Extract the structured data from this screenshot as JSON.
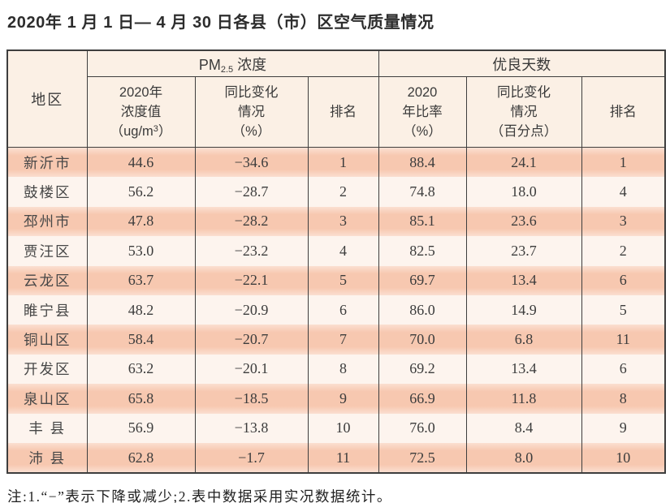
{
  "title": "2020年 1 月 1 日— 4 月 30 日各县（市）区空气质量情况",
  "table": {
    "header": {
      "region": "地区",
      "pm_group": {
        "prefix": "PM",
        "sub": "2.5",
        "suffix": "浓度"
      },
      "good_group": "优良天数",
      "pm_value": {
        "l1": "2020年",
        "l2": "浓度值",
        "l3_pre": "（ug/m",
        "l3_sup": "3",
        "l3_post": "）"
      },
      "pm_change": {
        "l1": "同比变化",
        "l2": "情况",
        "l3": "（%）"
      },
      "pm_rank": "排名",
      "good_rate": {
        "l1": "2020",
        "l2": "年比率",
        "l3": "（%）"
      },
      "good_change": {
        "l1": "同比变化",
        "l2": "情况",
        "l3": "（百分点）"
      },
      "good_rank": "排名"
    },
    "rows": [
      {
        "region": "新沂市",
        "pm_value": "44.6",
        "pm_change": "−34.6",
        "pm_rank": "1",
        "good_rate": "88.4",
        "good_change": "24.1",
        "good_rank": "1"
      },
      {
        "region": "鼓楼区",
        "pm_value": "56.2",
        "pm_change": "−28.7",
        "pm_rank": "2",
        "good_rate": "74.8",
        "good_change": "18.0",
        "good_rank": "4"
      },
      {
        "region": "邳州市",
        "pm_value": "47.8",
        "pm_change": "−28.2",
        "pm_rank": "3",
        "good_rate": "85.1",
        "good_change": "23.6",
        "good_rank": "3"
      },
      {
        "region": "贾汪区",
        "pm_value": "53.0",
        "pm_change": "−23.2",
        "pm_rank": "4",
        "good_rate": "82.5",
        "good_change": "23.7",
        "good_rank": "2"
      },
      {
        "region": "云龙区",
        "pm_value": "63.7",
        "pm_change": "−22.1",
        "pm_rank": "5",
        "good_rate": "69.7",
        "good_change": "13.4",
        "good_rank": "6"
      },
      {
        "region": "睢宁县",
        "pm_value": "48.2",
        "pm_change": "−20.9",
        "pm_rank": "6",
        "good_rate": "86.0",
        "good_change": "14.9",
        "good_rank": "5"
      },
      {
        "region": "铜山区",
        "pm_value": "58.4",
        "pm_change": "−20.7",
        "pm_rank": "7",
        "good_rate": "70.0",
        "good_change": "6.8",
        "good_rank": "11"
      },
      {
        "region": "开发区",
        "pm_value": "63.2",
        "pm_change": "−20.1",
        "pm_rank": "8",
        "good_rate": "69.2",
        "good_change": "13.4",
        "good_rank": "6"
      },
      {
        "region": "泉山区",
        "pm_value": "65.8",
        "pm_change": "−18.5",
        "pm_rank": "9",
        "good_rate": "66.9",
        "good_change": "11.8",
        "good_rank": "8"
      },
      {
        "region": "丰 县",
        "pm_value": "56.9",
        "pm_change": "−13.8",
        "pm_rank": "10",
        "good_rate": "76.0",
        "good_change": "8.4",
        "good_rank": "9"
      },
      {
        "region": "沛 县",
        "pm_value": "62.8",
        "pm_change": "−1.7",
        "pm_rank": "11",
        "good_rate": "72.5",
        "good_change": "8.0",
        "good_rank": "10"
      }
    ]
  },
  "note": "注:1.“−”表示下降或减少;2.表中数据采用实况数据统计。",
  "colors": {
    "row_salmon": "#f7c8b0",
    "row_salmon_edge": "#fbdfd1",
    "row_light": "#fdf4ee",
    "header_bg": "#fbf0e5",
    "border": "#3e3e3e",
    "text": "#3c3c3c"
  }
}
